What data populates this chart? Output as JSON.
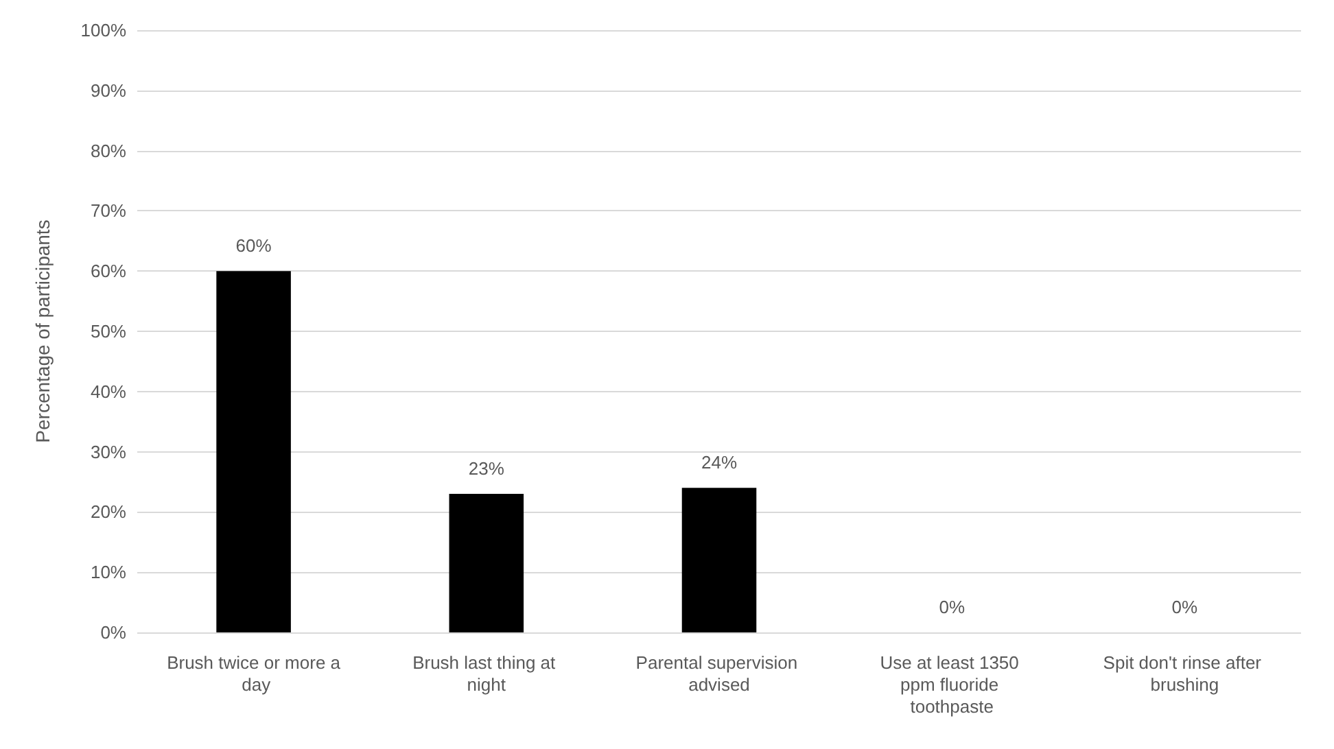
{
  "chart_data": {
    "type": "bar",
    "ylabel": "Percentage of participants",
    "categories": [
      "Brush twice or more a day",
      "Brush last thing at night",
      "Parental supervision advised",
      "Use at least 1350 ppm fluoride toothpaste",
      "Spit don't rinse after brushing"
    ],
    "values": [
      60,
      23,
      24,
      0,
      0
    ],
    "color": "#000000",
    "value_labels": [
      "60%",
      "23%",
      "24%",
      "0%",
      "0%"
    ],
    "ylim": [
      0,
      100
    ],
    "yticks": [
      {
        "value": 0,
        "label": "0%"
      },
      {
        "value": 10,
        "label": "10%"
      },
      {
        "value": 20,
        "label": "20%"
      },
      {
        "value": 30,
        "label": "30%"
      },
      {
        "value": 40,
        "label": "40%"
      },
      {
        "value": 50,
        "label": "50%"
      },
      {
        "value": 60,
        "label": "60%"
      },
      {
        "value": 70,
        "label": "70%"
      },
      {
        "value": 80,
        "label": "80%"
      },
      {
        "value": 90,
        "label": "90%"
      },
      {
        "value": 100,
        "label": "100%"
      }
    ],
    "grid": "y"
  }
}
